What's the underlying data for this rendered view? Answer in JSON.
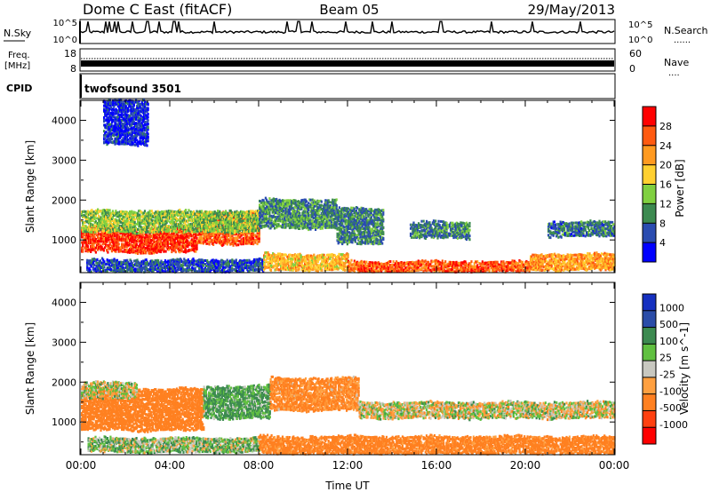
{
  "header": {
    "station": "Dome C East (fitACF)",
    "beam": "Beam 05",
    "date": "29/May/2013"
  },
  "colors": {
    "power_scale": [
      "#0000ff",
      "#2a4cb0",
      "#3c8a50",
      "#80d040",
      "#ffd030",
      "#ff9a20",
      "#ff5a10",
      "#ff0000"
    ],
    "velocity_scale": [
      "#1530c0",
      "#2a4ca8",
      "#3c8a50",
      "#60c040",
      "#c8c8c0",
      "#ffa040",
      "#ff8020",
      "#ff4010",
      "#ff0000"
    ],
    "noise_line": "#000000"
  },
  "chart_data": [
    {
      "type": "line",
      "name": "sky-noise-panel",
      "left_label": "N.Sky",
      "right_label": "N.Search",
      "right_legend": "......",
      "y_ticks_left": [
        "10^5",
        "10^0"
      ],
      "y_ticks_right": [
        "10^5",
        "10^0"
      ],
      "x_range_hours": [
        0,
        24
      ],
      "log_level": 2.4,
      "spikes_hours": [
        0.3,
        1.1,
        1.3,
        1.5,
        1.7,
        2.3,
        3.0,
        3.5,
        4.2,
        4.4,
        6.0,
        9.3,
        9.8,
        10.4,
        11.9,
        13.1,
        14.0,
        16.2,
        18.5,
        20.3,
        22.5
      ]
    },
    {
      "type": "line",
      "name": "frequency-panel",
      "left_label_1": "Freq.",
      "left_label_2": "[MHz]",
      "right_label": "Nave",
      "right_legend": "....",
      "y_ticks_left": [
        "18",
        "8"
      ],
      "y_ticks_right": [
        "60",
        "0"
      ],
      "x_range_hours": [
        0,
        24
      ]
    },
    {
      "type": "table",
      "name": "cpid-panel",
      "label": "CPID",
      "program": "twofsound 3501"
    },
    {
      "type": "heatmap",
      "name": "power-panel",
      "ylabel": "Slant Range [km]",
      "ylim": [
        180,
        4500
      ],
      "y_ticks": [
        1000,
        2000,
        3000,
        4000
      ],
      "xlim_hours": [
        0,
        24
      ],
      "colorbar_label": "Power [dB]",
      "colorbar_ticks": [
        4,
        8,
        12,
        16,
        20,
        24,
        28
      ],
      "colorbar_range": [
        0,
        32
      ],
      "echo_regions": [
        {
          "t0": 0.0,
          "t1": 5.2,
          "r0": 700,
          "r1": 1300,
          "level": 28
        },
        {
          "t0": 5.2,
          "t1": 8.0,
          "r0": 900,
          "r1": 1700,
          "level": 26
        },
        {
          "t0": 0.0,
          "t1": 8.0,
          "r0": 1200,
          "r1": 1700,
          "level": 14
        },
        {
          "t0": 8.0,
          "t1": 11.5,
          "r0": 1300,
          "r1": 2000,
          "level": 10
        },
        {
          "t0": 11.5,
          "t1": 13.6,
          "r0": 900,
          "r1": 1800,
          "level": 9
        },
        {
          "t0": 0.2,
          "t1": 8.2,
          "r0": 200,
          "r1": 500,
          "level": 6
        },
        {
          "t0": 8.2,
          "t1": 12.0,
          "r0": 250,
          "r1": 650,
          "level": 20
        },
        {
          "t0": 12.0,
          "t1": 20.2,
          "r0": 200,
          "r1": 450,
          "level": 26
        },
        {
          "t0": 20.2,
          "t1": 24.0,
          "r0": 250,
          "r1": 650,
          "level": 22
        },
        {
          "t0": 14.8,
          "t1": 17.5,
          "r0": 1050,
          "r1": 1450,
          "level": 9
        },
        {
          "t0": 21.0,
          "t1": 24.0,
          "r0": 1100,
          "r1": 1450,
          "level": 8
        },
        {
          "t0": 1.0,
          "t1": 3.0,
          "r0": 3400,
          "r1": 4500,
          "level": 4
        }
      ]
    },
    {
      "type": "heatmap",
      "name": "velocity-panel",
      "ylabel": "Slant Range [km]",
      "ylim": [
        180,
        4500
      ],
      "y_ticks": [
        1000,
        2000,
        3000,
        4000
      ],
      "xlim_hours": [
        0,
        24
      ],
      "x_tick_labels": [
        "00:00",
        "04:00",
        "08:00",
        "12:00",
        "16:00",
        "20:00",
        "00:00"
      ],
      "x_tick_hours": [
        0,
        4,
        8,
        12,
        16,
        20,
        24
      ],
      "xlabel": "Time UT",
      "colorbar_label": "Velocity [m s^-1]",
      "colorbar_ticks": [
        "1000",
        "500",
        "100",
        "25",
        "-25",
        "-100",
        "-500",
        "-1000"
      ],
      "echo_regions": [
        {
          "t0": 0.0,
          "t1": 5.5,
          "r0": 800,
          "r1": 1800,
          "level": -300
        },
        {
          "t0": 5.5,
          "t1": 8.5,
          "r0": 1100,
          "r1": 1900,
          "level": 120
        },
        {
          "t0": 8.5,
          "t1": 12.5,
          "r0": 1300,
          "r1": 2100,
          "level": -150
        },
        {
          "t0": 0.0,
          "t1": 2.5,
          "r0": 1600,
          "r1": 2000,
          "level": 0
        },
        {
          "t0": 12.5,
          "t1": 24.0,
          "r0": 1100,
          "r1": 1500,
          "level": 0
        },
        {
          "t0": 0.3,
          "t1": 8.0,
          "r0": 250,
          "r1": 600,
          "level": 60
        },
        {
          "t0": 8.0,
          "t1": 24.0,
          "r0": 200,
          "r1": 650,
          "level": -200
        }
      ]
    }
  ]
}
